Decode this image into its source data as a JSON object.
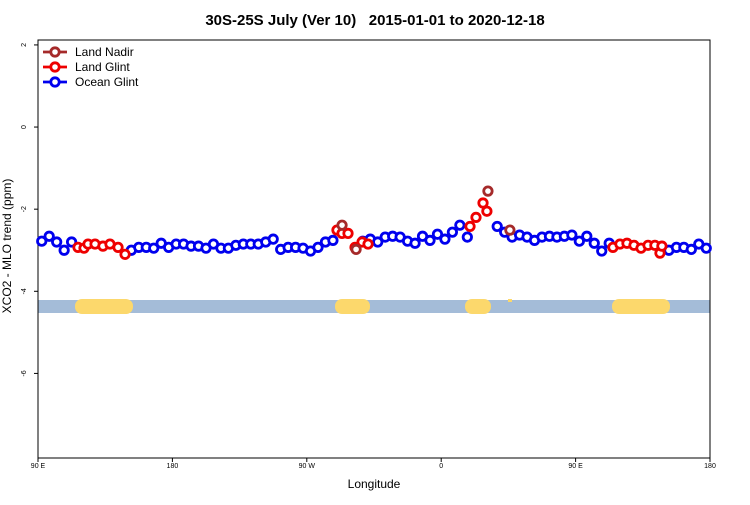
{
  "chart_data": {
    "type": "scatter",
    "title": "30S-25S July (Ver 10)   2015-01-01 to 2020-12-18",
    "x_label": "Longitude",
    "y_label": "XCO2 - MLO trend (ppm)",
    "xlim": [
      90,
      540
    ],
    "ylim": [
      -8.06,
      2.12
    ],
    "xticks": [
      {
        "value": 90,
        "label": "90 E"
      },
      {
        "value": 180,
        "label": "180"
      },
      {
        "value": 270,
        "label": "90 W"
      },
      {
        "value": 360,
        "label": "0"
      },
      {
        "value": 450,
        "label": "90 E"
      },
      {
        "value": 540,
        "label": "180"
      }
    ],
    "yticks": [
      -6,
      -4,
      -2,
      0,
      2
    ],
    "legend": "top-left",
    "series": [
      {
        "name": "Land Nadir",
        "color": "#a52a2a",
        "x": [
          293.6,
          303,
          391.3,
          406
        ],
        "values": [
          -2.39,
          -2.98,
          -1.56,
          -2.51
        ]
      },
      {
        "name": "Land Glint",
        "color": "#ee0000",
        "x": [
          116.8,
          120.8,
          123.5,
          128.2,
          133.5,
          138.2,
          143.6,
          148.3,
          290.2,
          293.6,
          297.6,
          302.3,
          307,
          311,
          379.3,
          383.3,
          388,
          390.6,
          475,
          479.7,
          484.4,
          489.1,
          493.8,
          498.5,
          503.1,
          506.5,
          507.8
        ],
        "values": [
          -2.93,
          -2.95,
          -2.85,
          -2.85,
          -2.9,
          -2.85,
          -2.93,
          -3.1,
          -2.51,
          -2.59,
          -2.59,
          -2.93,
          -2.8,
          -2.85,
          -2.42,
          -2.2,
          -1.85,
          -2.05,
          -2.93,
          -2.85,
          -2.83,
          -2.88,
          -2.95,
          -2.88,
          -2.88,
          -3.07,
          -2.9
        ]
      },
      {
        "name": "Ocean Glint",
        "color": "#0000ee",
        "x": [
          92.5,
          97.5,
          102.5,
          107.5,
          112.5,
          152.5,
          157.5,
          162.5,
          167.5,
          172.5,
          177.5,
          182.5,
          187.5,
          192.5,
          197.5,
          202.5,
          207.5,
          212.5,
          217.5,
          222.5,
          227.5,
          232.5,
          237.5,
          242.5,
          247.5,
          252.5,
          257.5,
          262.5,
          267.5,
          272.5,
          277.5,
          282.5,
          287.5,
          307.5,
          312.5,
          317.5,
          322.5,
          327.5,
          332.5,
          337.5,
          342.5,
          347.5,
          352.5,
          357.5,
          362.5,
          367.5,
          372.5,
          377.5,
          397.5,
          402.5,
          407.5,
          412.5,
          417.5,
          422.5,
          427.5,
          432.5,
          437.5,
          442.5,
          447.5,
          452.5,
          457.5,
          462.5,
          467.5,
          472.5,
          512.5,
          517.5,
          522.5,
          527.5,
          532.5,
          537.5
        ],
        "values": [
          -2.78,
          -2.66,
          -2.8,
          -3.0,
          -2.8,
          -3.0,
          -2.93,
          -2.93,
          -2.95,
          -2.83,
          -2.93,
          -2.85,
          -2.85,
          -2.9,
          -2.9,
          -2.95,
          -2.85,
          -2.95,
          -2.95,
          -2.88,
          -2.85,
          -2.85,
          -2.85,
          -2.8,
          -2.73,
          -2.98,
          -2.93,
          -2.93,
          -2.95,
          -3.02,
          -2.93,
          -2.8,
          -2.76,
          -2.78,
          -2.73,
          -2.8,
          -2.68,
          -2.66,
          -2.68,
          -2.78,
          -2.83,
          -2.66,
          -2.76,
          -2.61,
          -2.73,
          -2.56,
          -2.39,
          -2.68,
          -2.42,
          -2.56,
          -2.68,
          -2.63,
          -2.68,
          -2.76,
          -2.68,
          -2.66,
          -2.68,
          -2.66,
          -2.63,
          -2.78,
          -2.66,
          -2.83,
          -3.02,
          -2.83,
          -3.0,
          -2.93,
          -2.93,
          -2.98,
          -2.85,
          -2.95
        ]
      }
    ]
  }
}
